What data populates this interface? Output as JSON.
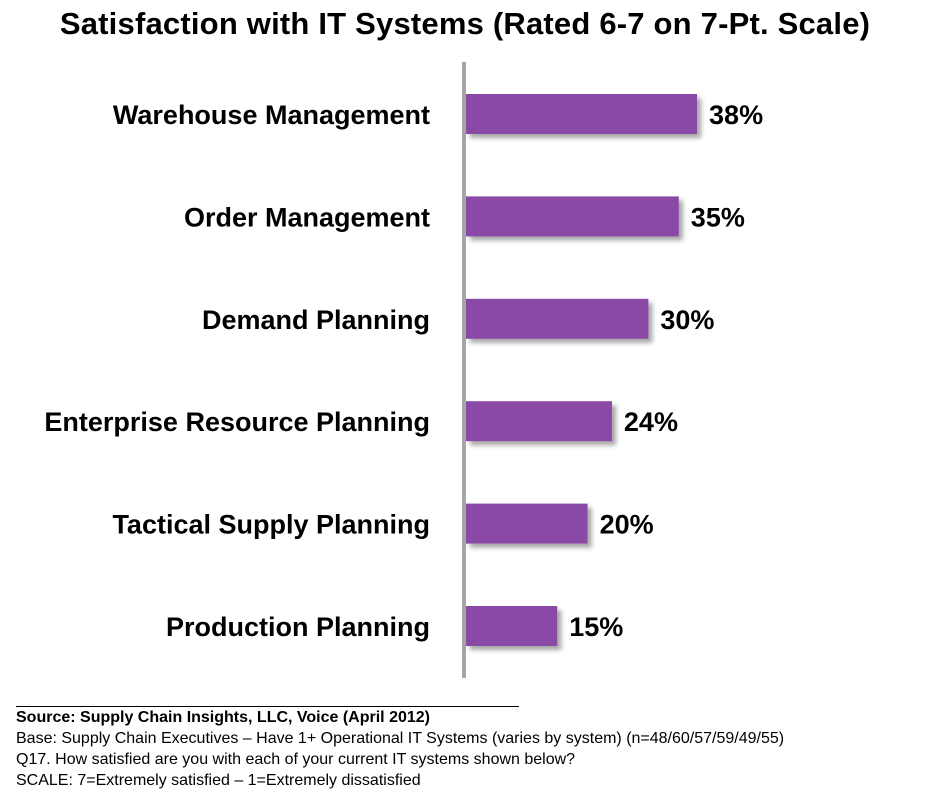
{
  "chart_data": {
    "type": "bar",
    "orientation": "horizontal",
    "title": "Satisfaction with IT Systems (Rated 6-7 on 7-Pt. Scale)",
    "categories": [
      "Warehouse Management",
      "Order Management",
      "Demand Planning",
      "Enterprise Resource Planning",
      "Tactical Supply Planning",
      "Production Planning"
    ],
    "values": [
      38,
      35,
      30,
      24,
      20,
      15
    ],
    "value_labels": [
      "38%",
      "35%",
      "30%",
      "24%",
      "20%",
      "15%"
    ],
    "xlim": [
      0,
      100
    ],
    "grid": false,
    "bar_color": "#8B4AA6",
    "axis_color": "#A6A6A6"
  },
  "footnote": {
    "source": "Source:  Supply Chain Insights, LLC, Voice (April 2012)",
    "base": "Base:  Supply Chain Executives – Have 1+ Operational IT Systems (varies by system) (n=48/60/57/59/49/55)",
    "question": "Q17. How satisfied are you with each of your current IT systems shown below?",
    "scale": "SCALE:  7=Extremely satisfied – 1=Extremely dissatisfied"
  }
}
